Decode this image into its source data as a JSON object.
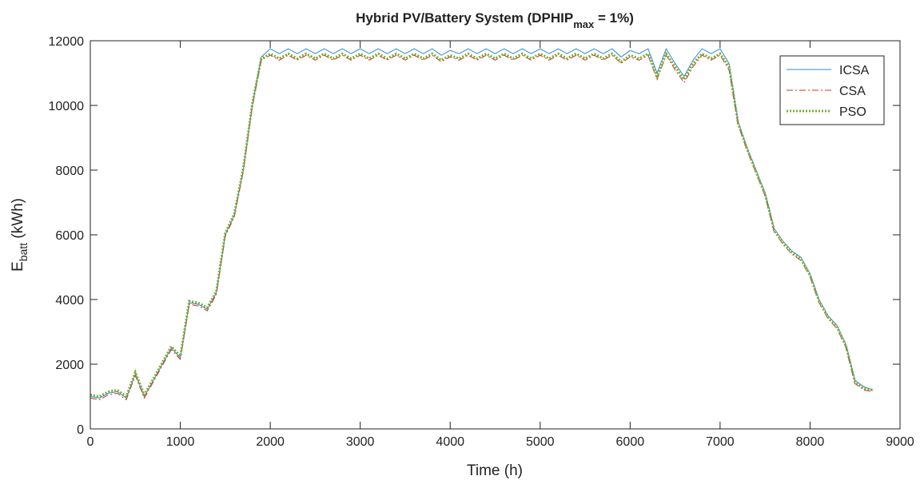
{
  "chart_data": {
    "type": "line",
    "title": [
      "Hybrid PV/Battery System (DPHIP",
      "max",
      " = 1%)"
    ],
    "x_label": "Time (h)",
    "y_label": [
      "E",
      "batt",
      " (kWh)"
    ],
    "x": [
      0,
      100,
      200,
      300,
      400,
      500,
      600,
      700,
      800,
      900,
      1000,
      1100,
      1200,
      1300,
      1400,
      1500,
      1600,
      1700,
      1800,
      1900,
      2000,
      2100,
      2200,
      2300,
      2400,
      2500,
      2600,
      2700,
      2800,
      2900,
      3000,
      3100,
      3200,
      3300,
      3400,
      3500,
      3600,
      3700,
      3800,
      3900,
      4000,
      4100,
      4200,
      4300,
      4400,
      4500,
      4600,
      4700,
      4800,
      4900,
      5000,
      5100,
      5200,
      5300,
      5400,
      5500,
      5600,
      5700,
      5800,
      5900,
      6000,
      6100,
      6200,
      6300,
      6400,
      6500,
      6600,
      6700,
      6800,
      6900,
      7000,
      7100,
      7200,
      7300,
      7400,
      7500,
      7600,
      7700,
      7800,
      7900,
      8000,
      8100,
      8200,
      8300,
      8400,
      8500,
      8600,
      8700
    ],
    "series": [
      {
        "name": "ICSA",
        "color": "#2b8cd6",
        "dash": "solid",
        "width": 1,
        "values": [
          1000,
          950,
          1100,
          1150,
          950,
          1700,
          1000,
          1500,
          2000,
          2500,
          2200,
          3900,
          3850,
          3700,
          4200,
          6000,
          6600,
          8000,
          10000,
          11500,
          11750,
          11600,
          11750,
          11600,
          11750,
          11600,
          11750,
          11600,
          11750,
          11600,
          11750,
          11600,
          11750,
          11600,
          11750,
          11600,
          11750,
          11600,
          11750,
          11550,
          11700,
          11600,
          11750,
          11600,
          11750,
          11600,
          11750,
          11600,
          11750,
          11600,
          11750,
          11600,
          11750,
          11600,
          11750,
          11600,
          11750,
          11600,
          11750,
          11500,
          11700,
          11600,
          11750,
          11000,
          11750,
          11300,
          10900,
          11400,
          11750,
          11600,
          11750,
          11300,
          9500,
          8700,
          8000,
          7300,
          6200,
          5800,
          5500,
          5300,
          4800,
          4000,
          3500,
          3200,
          2600,
          1500,
          1300,
          1200
        ]
      },
      {
        "name": "CSA",
        "color": "#d62f27",
        "dash": "dashdot",
        "width": 1,
        "values": [
          950,
          900,
          1050,
          1100,
          900,
          1650,
          950,
          1450,
          1950,
          2450,
          2150,
          3850,
          3800,
          3650,
          4150,
          5950,
          6550,
          7950,
          9950,
          11400,
          11550,
          11400,
          11550,
          11400,
          11550,
          11400,
          11550,
          11400,
          11550,
          11400,
          11550,
          11400,
          11550,
          11400,
          11550,
          11400,
          11550,
          11400,
          11550,
          11350,
          11500,
          11400,
          11550,
          11400,
          11550,
          11400,
          11550,
          11400,
          11550,
          11400,
          11550,
          11400,
          11550,
          11400,
          11550,
          11400,
          11550,
          11400,
          11550,
          11300,
          11500,
          11400,
          11550,
          10800,
          11550,
          11100,
          10700,
          11200,
          11550,
          11400,
          11550,
          11100,
          9400,
          8600,
          7900,
          7200,
          6100,
          5700,
          5400,
          5200,
          4700,
          3900,
          3400,
          3100,
          2500,
          1400,
          1200,
          1150
        ]
      },
      {
        "name": "PSO",
        "color": "#77ac30",
        "dash": "dotted",
        "width": 3,
        "values": [
          1050,
          1000,
          1150,
          1200,
          1000,
          1750,
          1050,
          1550,
          2050,
          2550,
          2250,
          3950,
          3900,
          3750,
          4250,
          6050,
          6650,
          8050,
          10050,
          11450,
          11600,
          11450,
          11600,
          11450,
          11600,
          11450,
          11600,
          11450,
          11600,
          11450,
          11600,
          11450,
          11600,
          11450,
          11600,
          11450,
          11600,
          11450,
          11600,
          11400,
          11550,
          11450,
          11600,
          11450,
          11600,
          11450,
          11600,
          11450,
          11600,
          11450,
          11600,
          11450,
          11600,
          11450,
          11600,
          11450,
          11600,
          11450,
          11600,
          11350,
          11550,
          11450,
          11600,
          10900,
          11600,
          11200,
          10800,
          11300,
          11600,
          11450,
          11600,
          11200,
          9450,
          8650,
          7950,
          7250,
          6150,
          5750,
          5450,
          5250,
          4750,
          3950,
          3450,
          3150,
          2550,
          1450,
          1250,
          1200
        ]
      }
    ],
    "xlim": [
      0,
      9000
    ],
    "xticks": [
      0,
      1000,
      2000,
      3000,
      4000,
      5000,
      6000,
      7000,
      8000,
      9000
    ],
    "ylim": [
      0,
      12000
    ],
    "yticks": [
      0,
      2000,
      4000,
      6000,
      8000,
      10000,
      12000
    ],
    "grid": false,
    "legend": "top-right"
  }
}
